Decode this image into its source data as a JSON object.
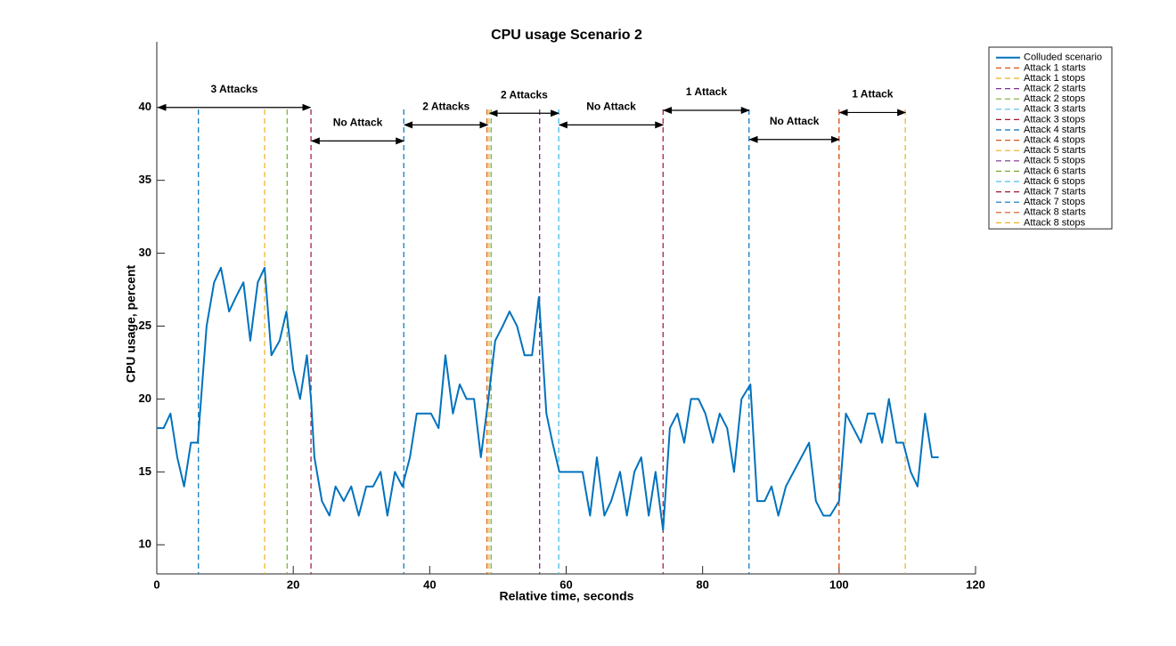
{
  "chart_data": {
    "type": "line",
    "title": "CPU usage Scenario 2",
    "xlabel": "Relative time, seconds",
    "ylabel": "CPU usage, percent",
    "xlim": [
      0,
      120
    ],
    "ylim": [
      8,
      44.5
    ],
    "xticks": [
      0,
      20,
      40,
      60,
      80,
      100,
      120
    ],
    "yticks": [
      10,
      15,
      20,
      25,
      30,
      35,
      40
    ],
    "legend": "top-right",
    "series": [
      {
        "name": "Colluded scenario",
        "color": "#0072bd",
        "x": [
          0,
          1,
          2,
          3,
          4,
          5,
          6,
          7.3,
          8.4,
          9.4,
          10.6,
          11.6,
          12.7,
          13.7,
          14.8,
          15.8,
          16.8,
          18,
          19,
          20,
          21,
          22,
          22.6,
          23.1,
          24.2,
          25.3,
          26.2,
          27.4,
          28.5,
          29.6,
          30.7,
          31.7,
          32.8,
          33.8,
          34.9,
          36,
          37.1,
          38.1,
          39.2,
          40.2,
          41.3,
          42.3,
          43.4,
          44.4,
          45.4,
          46.5,
          47.5,
          48.6,
          49.6,
          50.7,
          51.7,
          52.8,
          53.9,
          55,
          56,
          57.1,
          58,
          59,
          60.1,
          61.1,
          62.4,
          63.5,
          64.5,
          65.6,
          66.6,
          67.9,
          68.9,
          70,
          71,
          72.1,
          73.1,
          74.2,
          75.2,
          76.3,
          77.3,
          78.3,
          79.4,
          80.4,
          81.5,
          82.5,
          83.6,
          84.6,
          85.7,
          87,
          88,
          89.1,
          90.1,
          91.1,
          92.2,
          95.6,
          96.6,
          97.7,
          98.7,
          100,
          101,
          102.1,
          103.2,
          104.2,
          105.2,
          106.3,
          107.3,
          108.4,
          109.4,
          110.5,
          111.5,
          112.6,
          113.6,
          114.6
        ],
        "values": [
          18,
          18,
          19,
          16,
          14,
          17,
          17,
          25,
          28,
          29,
          26,
          27,
          28,
          24,
          28,
          29,
          23,
          24,
          26,
          22,
          20,
          23,
          20,
          16,
          13,
          12,
          14,
          13,
          14,
          12,
          14,
          14,
          15,
          12,
          15,
          14,
          16,
          19,
          19,
          19,
          18,
          23,
          19,
          21,
          20,
          20,
          16,
          20,
          24,
          25,
          26,
          25,
          23,
          23,
          27,
          19,
          17,
          15,
          15,
          15,
          15,
          12,
          16,
          12,
          13,
          15,
          12,
          15,
          16,
          12,
          15,
          11,
          18,
          19,
          17,
          20,
          20,
          19,
          17,
          19,
          18,
          15,
          20,
          21,
          13,
          13,
          14,
          12,
          14,
          17,
          13,
          12,
          12,
          13,
          19,
          18,
          17,
          19,
          19,
          17,
          20,
          17,
          17,
          15,
          14,
          19,
          16,
          16
        ]
      }
    ],
    "vlines": [
      {
        "name": "Attack 1 starts",
        "color": "#d95319",
        "x": [
          100
        ]
      },
      {
        "name": "Attack 1 stops",
        "color": "#edb120",
        "x": [
          109.7
        ]
      },
      {
        "name": "Attack 2 starts",
        "color": "#7e2f8e",
        "x": [
          56.1
        ]
      },
      {
        "name": "Attack 2 stops",
        "color": "#77ac30",
        "x": [
          19.1
        ]
      },
      {
        "name": "Attack 3 starts",
        "color": "#4dbeee",
        "x": [
          58.9
        ]
      },
      {
        "name": "Attack 3 stops",
        "color": "#a2142f",
        "x": [
          22.6
        ]
      },
      {
        "name": "Attack 4 starts",
        "color": "#0072bd",
        "x": [
          6.1
        ]
      },
      {
        "name": "Attack 4 stops",
        "color": "#d95319",
        "x": [
          48.4
        ]
      },
      {
        "name": "Attack 5 starts",
        "color": "#edb120",
        "x": [
          15.8
        ]
      },
      {
        "name": "Attack 5 stops",
        "color": "#7e2f8e",
        "x": [
          56.1
        ]
      },
      {
        "name": "Attack 6 starts",
        "color": "#77ac30",
        "x": [
          49
        ]
      },
      {
        "name": "Attack 6 stops",
        "color": "#4dbeee",
        "x": [
          58.9
        ]
      },
      {
        "name": "Attack 7 starts",
        "color": "#a2142f",
        "x": [
          74.2
        ]
      },
      {
        "name": "Attack 7 stops",
        "color": "#0072bd",
        "x": [
          36.2,
          86.8
        ]
      },
      {
        "name": "Attack 8 starts",
        "color": "#d95319",
        "x": [
          100
        ]
      },
      {
        "name": "Attack 8 stops",
        "color": "#edb120",
        "x": [
          48.7
        ]
      }
    ],
    "annotations": [
      {
        "text": "3 Attacks",
        "x": [
          0.2,
          22.5
        ],
        "y": 40
      },
      {
        "text": "No Attack",
        "x": [
          22.7,
          36.2
        ],
        "y": 37.7
      },
      {
        "text": "2 Attacks",
        "x": [
          36.3,
          48.5
        ],
        "y": 38.8
      },
      {
        "text": "2 Attacks",
        "x": [
          48.8,
          58.9
        ],
        "y": 39.6
      },
      {
        "text": "No Attack",
        "x": [
          59,
          74.2
        ],
        "y": 38.8
      },
      {
        "text": "1 Attack",
        "x": [
          74.3,
          86.8
        ],
        "y": 39.8
      },
      {
        "text": "No Attack",
        "x": [
          86.9,
          100
        ],
        "y": 37.8
      },
      {
        "text": "1 Attack",
        "x": [
          100.1,
          109.7
        ],
        "y": 39.65
      }
    ]
  }
}
